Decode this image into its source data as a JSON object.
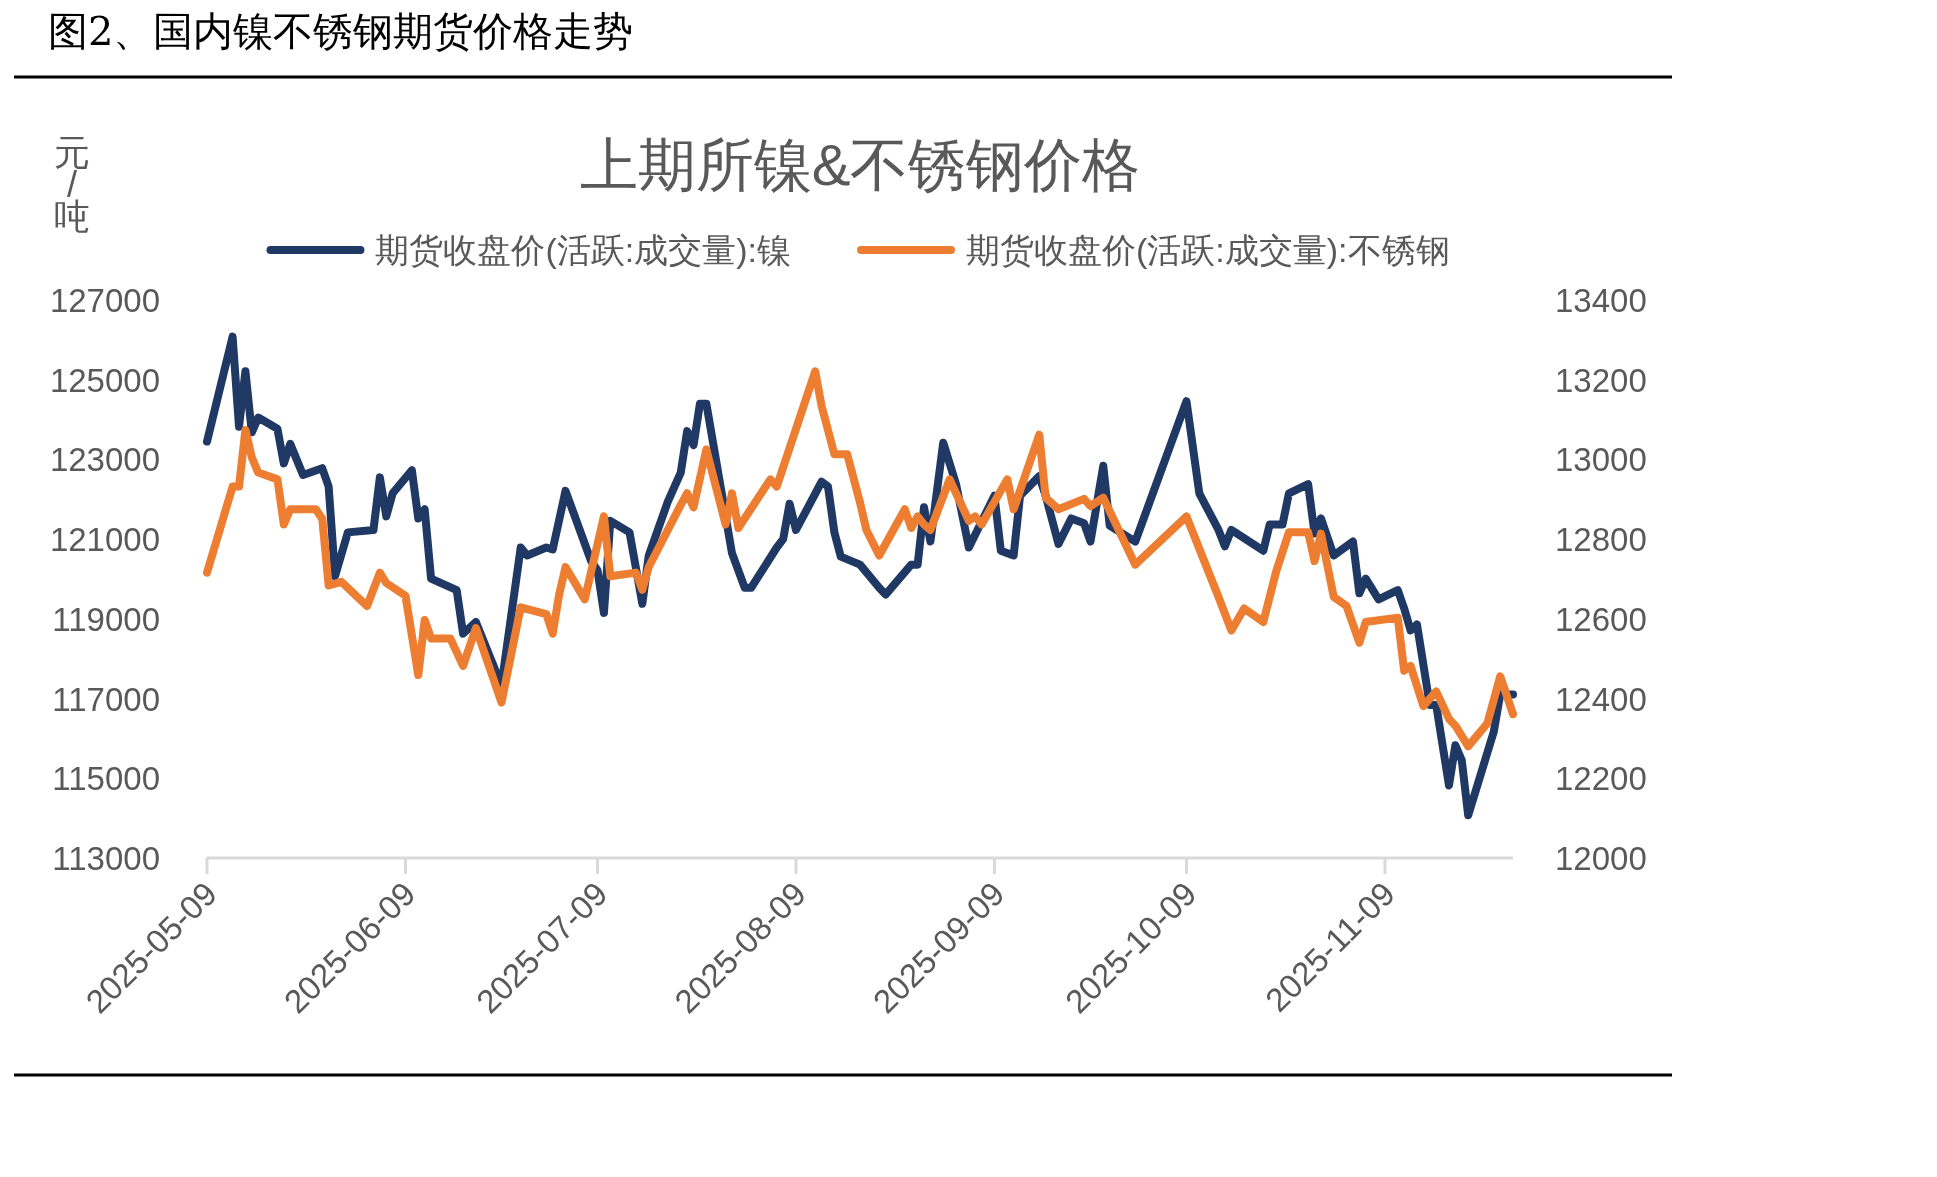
{
  "chart_data": {
    "type": "line",
    "title": "图2、国内镍不锈钢期货价格走势",
    "subtitle": "上期所镍&不锈钢价格",
    "ylabel": "元/吨",
    "legend": "top",
    "line_style": "solid",
    "xlim": [
      "2025-05-09",
      "2025-11-29"
    ],
    "xticks": [
      "2025-05-09",
      "2025-06-09",
      "2025-07-09",
      "2025-08-09",
      "2025-09-09",
      "2025-10-09",
      "2025-11-09"
    ],
    "ylim": [
      113000,
      127000
    ],
    "yticks": [
      113000,
      115000,
      117000,
      119000,
      121000,
      123000,
      125000,
      127000
    ],
    "y2lim": [
      12000,
      13400
    ],
    "y2ticks": [
      12000,
      12200,
      12400,
      12600,
      12800,
      13000,
      13200,
      13400
    ],
    "series": [
      {
        "name": "期货收盘价(活跃:成交量):镍",
        "color": "#1f3864",
        "x": [
          "2025-05-09",
          "2025-05-13",
          "2025-05-14",
          "2025-05-15",
          "2025-05-16",
          "2025-05-17",
          "2025-05-20",
          "2025-05-21",
          "2025-05-22",
          "2025-05-24",
          "2025-05-27",
          "2025-05-28",
          "2025-05-29",
          "2025-05-31",
          "2025-06-04",
          "2025-06-05",
          "2025-06-06",
          "2025-06-07",
          "2025-06-10",
          "2025-06-11",
          "2025-06-12",
          "2025-06-13",
          "2025-06-17",
          "2025-06-18",
          "2025-06-20",
          "2025-06-24",
          "2025-06-27",
          "2025-06-28",
          "2025-07-01",
          "2025-07-02",
          "2025-07-04",
          "2025-07-08",
          "2025-07-09",
          "2025-07-10",
          "2025-07-11",
          "2025-07-14",
          "2025-07-16",
          "2025-07-17",
          "2025-07-20",
          "2025-07-22",
          "2025-07-23",
          "2025-07-24",
          "2025-07-25",
          "2025-07-26",
          "2025-07-30",
          "2025-08-01",
          "2025-08-02",
          "2025-08-06",
          "2025-08-07",
          "2025-08-08",
          "2025-08-09",
          "2025-08-13",
          "2025-08-14",
          "2025-08-15",
          "2025-08-16",
          "2025-08-19",
          "2025-08-22",
          "2025-08-23",
          "2025-08-27",
          "2025-08-28",
          "2025-08-29",
          "2025-08-30",
          "2025-09-01",
          "2025-09-03",
          "2025-09-05",
          "2025-09-09",
          "2025-09-10",
          "2025-09-12",
          "2025-09-13",
          "2025-09-16",
          "2025-09-17",
          "2025-09-19",
          "2025-09-21",
          "2025-09-23",
          "2025-09-24",
          "2025-09-26",
          "2025-09-27",
          "2025-10-01",
          "2025-10-09",
          "2025-10-11",
          "2025-10-14",
          "2025-10-15",
          "2025-10-16",
          "2025-10-21",
          "2025-10-22",
          "2025-10-24",
          "2025-10-25",
          "2025-10-28",
          "2025-10-29",
          "2025-10-30",
          "2025-11-01",
          "2025-11-04",
          "2025-11-05",
          "2025-11-06",
          "2025-11-08",
          "2025-11-11",
          "2025-11-12",
          "2025-11-13",
          "2025-11-14",
          "2025-11-16",
          "2025-11-17",
          "2025-11-19",
          "2025-11-20",
          "2025-11-21",
          "2025-11-22",
          "2025-11-26",
          "2025-11-27",
          "2025-11-29"
        ],
        "values": [
          123450,
          126080,
          123820,
          125210,
          123680,
          124050,
          123770,
          122900,
          123390,
          122610,
          122780,
          122320,
          120070,
          121170,
          121230,
          122550,
          121570,
          122150,
          122730,
          121520,
          121750,
          120010,
          119720,
          118630,
          118920,
          117330,
          120790,
          120590,
          120790,
          120740,
          122210,
          120450,
          120220,
          119150,
          121460,
          121170,
          119380,
          120590,
          121950,
          122670,
          123710,
          123360,
          124400,
          124400,
          120650,
          119780,
          119780,
          120790,
          121000,
          121890,
          121230,
          122440,
          122320,
          121170,
          120560,
          120360,
          119780,
          119610,
          120360,
          120360,
          121800,
          120940,
          123420,
          122380,
          120790,
          122090,
          120710,
          120590,
          122090,
          122580,
          122090,
          120880,
          121520,
          121400,
          120940,
          122840,
          121340,
          120940,
          124460,
          122150,
          121230,
          120820,
          121230,
          120710,
          121370,
          121370,
          122150,
          122380,
          121140,
          121520,
          120590,
          120940,
          119640,
          120010,
          119490,
          119720,
          119260,
          118710,
          118860,
          116840,
          116840,
          114820,
          115830,
          115450,
          114070,
          116170,
          117100,
          117100
        ]
      },
      {
        "name": "期货收盘价(活跃:成交量):不锈钢",
        "color": "#ed7d31",
        "axis": "y2",
        "x": [
          "2025-05-09",
          "2025-05-13",
          "2025-05-14",
          "2025-05-15",
          "2025-05-16",
          "2025-05-17",
          "2025-05-20",
          "2025-05-21",
          "2025-05-22",
          "2025-05-26",
          "2025-05-27",
          "2025-05-28",
          "2025-05-30",
          "2025-06-03",
          "2025-06-05",
          "2025-06-06",
          "2025-06-09",
          "2025-06-11",
          "2025-06-12",
          "2025-06-13",
          "2025-06-16",
          "2025-06-18",
          "2025-06-20",
          "2025-06-24",
          "2025-06-27",
          "2025-07-01",
          "2025-07-02",
          "2025-07-03",
          "2025-07-04",
          "2025-07-07",
          "2025-07-10",
          "2025-07-11",
          "2025-07-15",
          "2025-07-16",
          "2025-07-17",
          "2025-07-22",
          "2025-07-23",
          "2025-07-24",
          "2025-07-26",
          "2025-07-29",
          "2025-07-30",
          "2025-07-31",
          "2025-08-05",
          "2025-08-06",
          "2025-08-12",
          "2025-08-13",
          "2025-08-15",
          "2025-08-17",
          "2025-08-19",
          "2025-08-20",
          "2025-08-22",
          "2025-08-26",
          "2025-08-27",
          "2025-08-28",
          "2025-08-29",
          "2025-08-30",
          "2025-09-02",
          "2025-09-05",
          "2025-09-06",
          "2025-09-07",
          "2025-09-11",
          "2025-09-12",
          "2025-09-16",
          "2025-09-17",
          "2025-09-19",
          "2025-09-23",
          "2025-09-24",
          "2025-09-26",
          "2025-10-01",
          "2025-10-09",
          "2025-10-14",
          "2025-10-16",
          "2025-10-18",
          "2025-10-21",
          "2025-10-23",
          "2025-10-25",
          "2025-10-28",
          "2025-10-29",
          "2025-10-30",
          "2025-11-01",
          "2025-11-03",
          "2025-11-05",
          "2025-11-06",
          "2025-11-11",
          "2025-11-12",
          "2025-11-13",
          "2025-11-15",
          "2025-11-17",
          "2025-11-19",
          "2025-11-20",
          "2025-11-22",
          "2025-11-25",
          "2025-11-27",
          "2025-11-29"
        ],
        "values": [
          12716,
          12932,
          12932,
          13074,
          13005,
          12967,
          12950,
          12837,
          12875,
          12875,
          12851,
          12684,
          12693,
          12632,
          12716,
          12690,
          12658,
          12459,
          12597,
          12551,
          12551,
          12482,
          12577,
          12390,
          12629,
          12612,
          12563,
          12661,
          12730,
          12649,
          12857,
          12707,
          12716,
          12673,
          12730,
          12886,
          12915,
          12880,
          13025,
          12837,
          12915,
          12828,
          12950,
          12932,
          13221,
          13134,
          13013,
          13013,
          12892,
          12823,
          12759,
          12875,
          12828,
          12857,
          12837,
          12823,
          12950,
          12846,
          12857,
          12837,
          12950,
          12875,
          13062,
          12904,
          12875,
          12901,
          12883,
          12904,
          12736,
          12857,
          12655,
          12571,
          12626,
          12592,
          12719,
          12817,
          12817,
          12745,
          12814,
          12655,
          12632,
          12540,
          12592,
          12603,
          12470,
          12482,
          12381,
          12418,
          12349,
          12332,
          12280,
          12338,
          12456,
          12361
        ]
      }
    ]
  }
}
